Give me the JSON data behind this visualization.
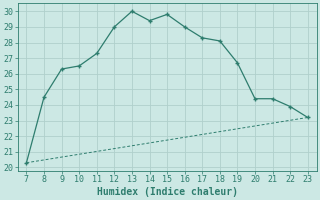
{
  "x": [
    7,
    8,
    9,
    10,
    11,
    12,
    13,
    14,
    15,
    16,
    17,
    18,
    19,
    20,
    21,
    22,
    23
  ],
  "y_main": [
    20.3,
    24.5,
    26.3,
    26.5,
    27.3,
    29.0,
    30.0,
    29.4,
    29.8,
    29.0,
    28.3,
    28.1,
    26.7,
    24.4,
    24.4,
    23.9,
    23.2
  ],
  "y_line2_start": 20.3,
  "y_line2_end": 23.2,
  "line_color": "#2e7d6e",
  "bg_color": "#cce8e4",
  "grid_color": "#b0d0cc",
  "xlabel": "Humidex (Indice chaleur)",
  "xlim": [
    6.5,
    23.5
  ],
  "ylim": [
    19.8,
    30.5
  ],
  "yticks": [
    20,
    21,
    22,
    23,
    24,
    25,
    26,
    27,
    28,
    29,
    30
  ],
  "xticks": [
    7,
    8,
    9,
    10,
    11,
    12,
    13,
    14,
    15,
    16,
    17,
    18,
    19,
    20,
    21,
    22,
    23
  ],
  "tick_fontsize": 6.0,
  "xlabel_fontsize": 7.0
}
